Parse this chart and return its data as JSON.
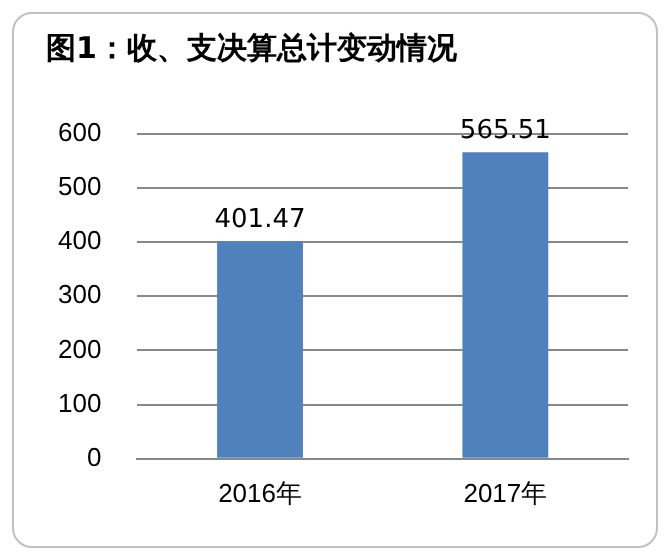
{
  "chart_data": {
    "type": "bar",
    "title": "图1：收、支决算总计变动情况",
    "categories": [
      "2016年",
      "2017年"
    ],
    "series": [
      {
        "color": "#4f81bd",
        "values": [
          401.47,
          565.51
        ]
      }
    ],
    "ylim": [
      0,
      600
    ],
    "yticks": [
      0,
      100,
      200,
      300,
      400,
      500,
      600
    ],
    "grid": "y",
    "legend": false,
    "data_labels": true
  }
}
